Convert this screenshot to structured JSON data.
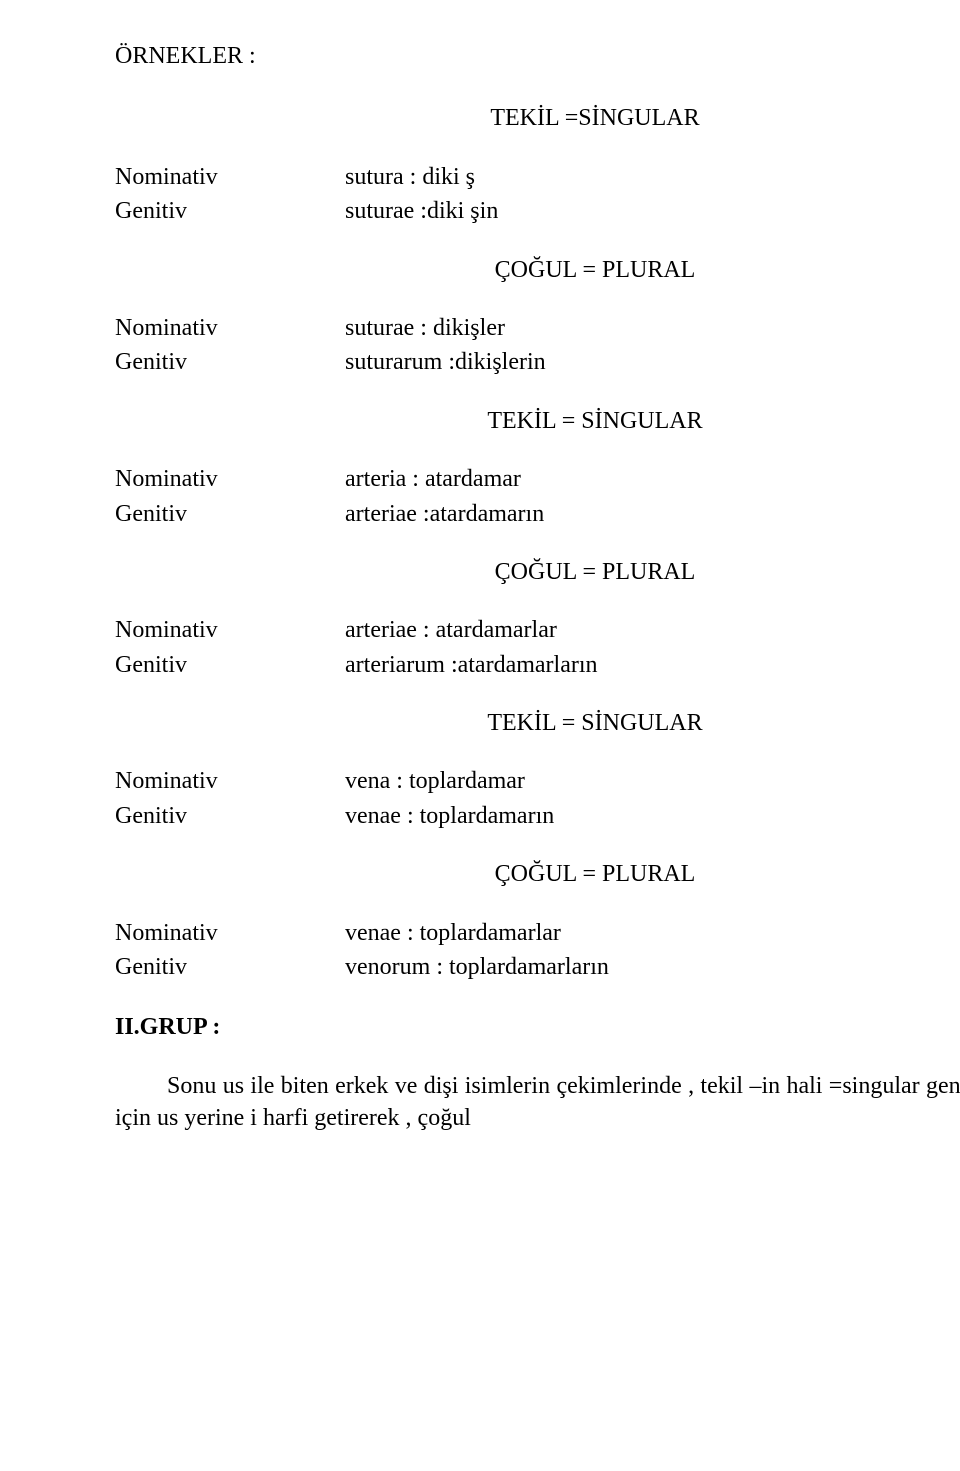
{
  "title": "ÖRNEKLER :",
  "labels": {
    "nominativ": "Nominativ",
    "genitiv": "Genitiv"
  },
  "headings": {
    "tekil_singular_eq": "TEKİL =SİNGULAR",
    "cogul_plural": "ÇOĞUL = PLURAL",
    "tekil_singular_sp": "TEKİL = SİNGULAR"
  },
  "groups": [
    {
      "heading_key": "tekil_singular_eq",
      "nom": "sutura  : diki ş",
      "gen": "suturae :diki şin"
    },
    {
      "heading_key": "cogul_plural",
      "nom": "suturae : dikişler",
      "gen": "suturarum :dikişlerin"
    },
    {
      "heading_key": "tekil_singular_sp",
      "nom": "arteria : atardamar",
      "gen": "arteriae :atardamarın"
    },
    {
      "heading_key": "cogul_plural",
      "nom": "arteriae : atardamarlar",
      "gen": "arteriarum :atardamarların"
    },
    {
      "heading_key": "tekil_singular_sp",
      "nom": "vena : toplardamar",
      "gen": "venae : toplardamarın"
    },
    {
      "heading_key": "cogul_plural",
      "nom": "venae : toplardamarlar",
      "gen": "venorum : toplardamarların"
    }
  ],
  "grup2": {
    "heading": "II.GRUP :",
    "paragraph": "Sonu us ile biten erkek ve dişi isimlerin çekimlerinde , tekil –in hali =singular genitiv yapmak için  us yerine  i harfi getirerek , çoğul"
  }
}
